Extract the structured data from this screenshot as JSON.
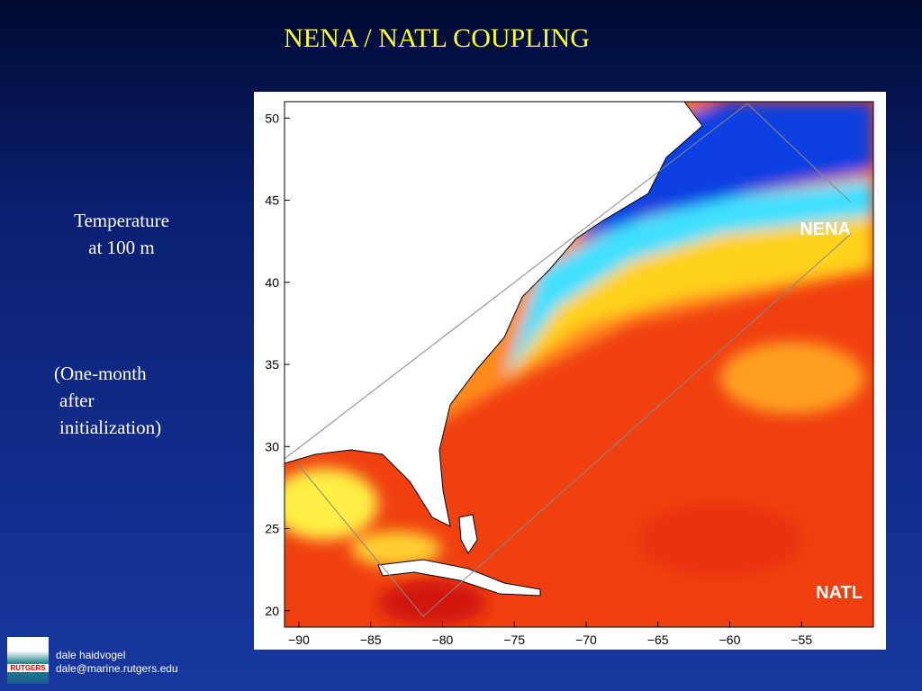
{
  "slide": {
    "title": "NENA / NATL COUPLING",
    "caption": [
      "Temperature",
      "at 100 m"
    ],
    "note": [
      "(One-month",
      "after",
      "initialization)"
    ],
    "map": {
      "xlim": [
        -91,
        -50
      ],
      "ylim": [
        19,
        51
      ],
      "xticks": [
        {
          "value": -90,
          "label": "−90"
        },
        {
          "value": -85,
          "label": "−85"
        },
        {
          "value": -80,
          "label": "−80"
        },
        {
          "value": -75,
          "label": "−75"
        },
        {
          "value": -70,
          "label": "−70"
        },
        {
          "value": -65,
          "label": "−65"
        },
        {
          "value": -60,
          "label": "−60"
        },
        {
          "value": -55,
          "label": "−55"
        }
      ],
      "yticks": [
        20,
        25,
        30,
        35,
        40,
        45,
        50
      ],
      "labels": [
        "NENA",
        "NATL"
      ]
    },
    "footer": {
      "logo": "RUTGERS",
      "name": "dale haidvogel",
      "email": "dale@marine.rutgers.edu"
    }
  }
}
